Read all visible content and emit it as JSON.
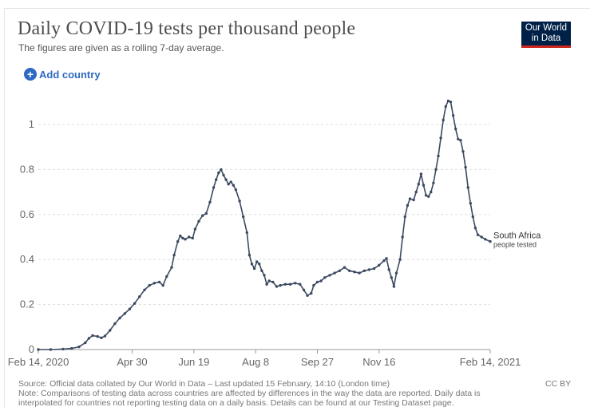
{
  "header": {
    "title": "Daily COVID-19 tests per thousand people",
    "subtitle": "The figures are given as a rolling 7-day average.",
    "logo_line1": "Our World",
    "logo_line2": "in Data"
  },
  "controls": {
    "add_country_label": "Add country",
    "plus_icon": "+"
  },
  "footer": {
    "source": "Source: Official data collated by Our World in Data – Last updated 15 February, 14:10 (London time)",
    "note1": "Note: Comparisons of testing data across countries are affected by differences in the way the data are reported. Daily data is",
    "note2": "interpolated for countries not reporting testing data on a daily basis. Details can be found at our Testing Dataset page.",
    "license": "CC BY"
  },
  "colors": {
    "series": "#3c4a60",
    "grid": "#dddddd",
    "accent": "#2e6ac1"
  },
  "chart_data": {
    "type": "line",
    "title": "Daily COVID-19 tests per thousand people",
    "subtitle": "The figures are given as a rolling 7-day average.",
    "xlabel": "",
    "ylabel": "",
    "x_ticks": [
      "Feb 14, 2020",
      "Apr 30",
      "Jun 19",
      "Aug 8",
      "Sep 27",
      "Nov 16",
      "Feb 14, 2021"
    ],
    "y_ticks": [
      "0",
      "0.2",
      "0.4",
      "0.6",
      "0.8",
      "1"
    ],
    "xlim": [
      "2020-02-14",
      "2021-02-14"
    ],
    "ylim": [
      0,
      1.1
    ],
    "grid": "horizontal-dashed",
    "legend": "end-of-line label",
    "series": [
      {
        "name": "South Africa",
        "label_sub": "people tested",
        "points": [
          [
            "2020-02-14",
            0
          ],
          [
            "2020-02-24",
            0
          ],
          [
            "2020-03-05",
            0.002
          ],
          [
            "2020-03-12",
            0.005
          ],
          [
            "2020-03-18",
            0.012
          ],
          [
            "2020-03-23",
            0.03
          ],
          [
            "2020-03-26",
            0.05
          ],
          [
            "2020-03-29",
            0.062
          ],
          [
            "2020-04-02",
            0.058
          ],
          [
            "2020-04-05",
            0.052
          ],
          [
            "2020-04-08",
            0.06
          ],
          [
            "2020-04-12",
            0.085
          ],
          [
            "2020-04-16",
            0.115
          ],
          [
            "2020-04-20",
            0.14
          ],
          [
            "2020-04-24",
            0.16
          ],
          [
            "2020-04-28",
            0.18
          ],
          [
            "2020-05-02",
            0.205
          ],
          [
            "2020-05-06",
            0.235
          ],
          [
            "2020-05-10",
            0.265
          ],
          [
            "2020-05-14",
            0.285
          ],
          [
            "2020-05-18",
            0.295
          ],
          [
            "2020-05-22",
            0.3
          ],
          [
            "2020-05-25",
            0.285
          ],
          [
            "2020-05-28",
            0.325
          ],
          [
            "2020-06-01",
            0.365
          ],
          [
            "2020-06-03",
            0.42
          ],
          [
            "2020-06-06",
            0.48
          ],
          [
            "2020-06-08",
            0.505
          ],
          [
            "2020-06-10",
            0.495
          ],
          [
            "2020-06-12",
            0.49
          ],
          [
            "2020-06-15",
            0.5
          ],
          [
            "2020-06-18",
            0.495
          ],
          [
            "2020-06-20",
            0.535
          ],
          [
            "2020-06-23",
            0.57
          ],
          [
            "2020-06-26",
            0.595
          ],
          [
            "2020-06-29",
            0.605
          ],
          [
            "2020-07-02",
            0.655
          ],
          [
            "2020-07-05",
            0.72
          ],
          [
            "2020-07-07",
            0.755
          ],
          [
            "2020-07-09",
            0.785
          ],
          [
            "2020-07-11",
            0.8
          ],
          [
            "2020-07-13",
            0.775
          ],
          [
            "2020-07-15",
            0.755
          ],
          [
            "2020-07-17",
            0.735
          ],
          [
            "2020-07-19",
            0.745
          ],
          [
            "2020-07-21",
            0.73
          ],
          [
            "2020-07-23",
            0.71
          ],
          [
            "2020-07-26",
            0.66
          ],
          [
            "2020-07-29",
            0.59
          ],
          [
            "2020-08-01",
            0.52
          ],
          [
            "2020-08-03",
            0.42
          ],
          [
            "2020-08-05",
            0.38
          ],
          [
            "2020-08-07",
            0.36
          ],
          [
            "2020-08-09",
            0.39
          ],
          [
            "2020-08-11",
            0.38
          ],
          [
            "2020-08-13",
            0.35
          ],
          [
            "2020-08-15",
            0.33
          ],
          [
            "2020-08-17",
            0.29
          ],
          [
            "2020-08-19",
            0.305
          ],
          [
            "2020-08-22",
            0.3
          ],
          [
            "2020-08-25",
            0.28
          ],
          [
            "2020-08-28",
            0.285
          ],
          [
            "2020-09-01",
            0.29
          ],
          [
            "2020-09-05",
            0.29
          ],
          [
            "2020-09-09",
            0.295
          ],
          [
            "2020-09-13",
            0.29
          ],
          [
            "2020-09-16",
            0.265
          ],
          [
            "2020-09-19",
            0.24
          ],
          [
            "2020-09-22",
            0.25
          ],
          [
            "2020-09-24",
            0.285
          ],
          [
            "2020-09-27",
            0.3
          ],
          [
            "2020-09-30",
            0.305
          ],
          [
            "2020-10-03",
            0.32
          ],
          [
            "2020-10-07",
            0.33
          ],
          [
            "2020-10-11",
            0.34
          ],
          [
            "2020-10-15",
            0.35
          ],
          [
            "2020-10-19",
            0.365
          ],
          [
            "2020-10-23",
            0.35
          ],
          [
            "2020-10-27",
            0.345
          ],
          [
            "2020-10-31",
            0.34
          ],
          [
            "2020-11-04",
            0.35
          ],
          [
            "2020-11-08",
            0.355
          ],
          [
            "2020-11-12",
            0.36
          ],
          [
            "2020-11-16",
            0.375
          ],
          [
            "2020-11-20",
            0.395
          ],
          [
            "2020-11-22",
            0.405
          ],
          [
            "2020-11-24",
            0.355
          ],
          [
            "2020-11-26",
            0.32
          ],
          [
            "2020-11-28",
            0.28
          ],
          [
            "2020-11-30",
            0.34
          ],
          [
            "2020-12-03",
            0.4
          ],
          [
            "2020-12-05",
            0.5
          ],
          [
            "2020-12-07",
            0.59
          ],
          [
            "2020-12-09",
            0.64
          ],
          [
            "2020-12-11",
            0.67
          ],
          [
            "2020-12-14",
            0.665
          ],
          [
            "2020-12-16",
            0.7
          ],
          [
            "2020-12-18",
            0.735
          ],
          [
            "2020-12-20",
            0.78
          ],
          [
            "2020-12-22",
            0.73
          ],
          [
            "2020-12-24",
            0.685
          ],
          [
            "2020-12-26",
            0.68
          ],
          [
            "2020-12-28",
            0.7
          ],
          [
            "2020-12-30",
            0.74
          ],
          [
            "2021-01-01",
            0.8
          ],
          [
            "2021-01-03",
            0.86
          ],
          [
            "2021-01-05",
            0.94
          ],
          [
            "2021-01-07",
            1.02
          ],
          [
            "2021-01-09",
            1.08
          ],
          [
            "2021-01-11",
            1.105
          ],
          [
            "2021-01-13",
            1.1
          ],
          [
            "2021-01-15",
            1.04
          ],
          [
            "2021-01-17",
            0.98
          ],
          [
            "2021-01-19",
            0.935
          ],
          [
            "2021-01-21",
            0.93
          ],
          [
            "2021-01-23",
            0.88
          ],
          [
            "2021-01-25",
            0.81
          ],
          [
            "2021-01-27",
            0.72
          ],
          [
            "2021-01-29",
            0.65
          ],
          [
            "2021-01-31",
            0.59
          ],
          [
            "2021-02-02",
            0.54
          ],
          [
            "2021-02-04",
            0.51
          ],
          [
            "2021-02-07",
            0.5
          ],
          [
            "2021-02-10",
            0.49
          ],
          [
            "2021-02-14",
            0.48
          ]
        ]
      }
    ]
  }
}
